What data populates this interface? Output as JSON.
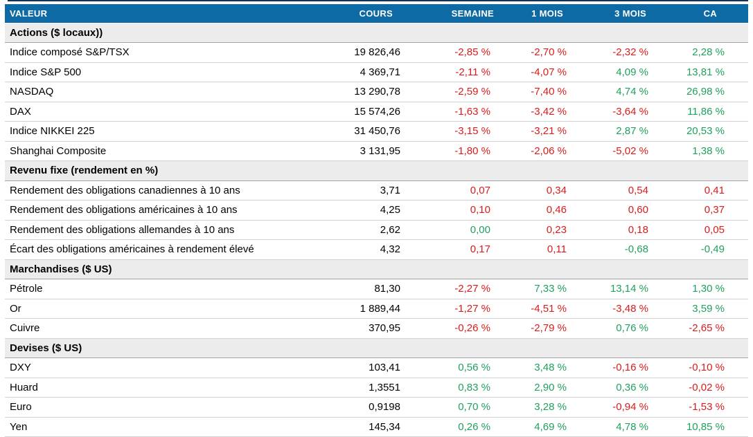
{
  "colors": {
    "header_bg": "#0e6aa5",
    "top_rule": "#16324f",
    "section_bg": "#ececec",
    "row_border": "#d2d2d2",
    "section_border": "#a3a3a3",
    "negative": "#dc1a1a",
    "positive": "#1fa05c"
  },
  "chart_data": {
    "type": "table",
    "columns": [
      "VALEUR",
      "COURS",
      "SEMAINE",
      "1 MOIS",
      "3 MOIS",
      "CA"
    ],
    "sections": [
      {
        "title": "Actions ($ locaux))",
        "rows": [
          {
            "label": "Indice composé S&P/TSX",
            "cours": "19 826,46",
            "changes": [
              {
                "text": "-2,85 %",
                "tone": "negative"
              },
              {
                "text": "-2,70 %",
                "tone": "negative"
              },
              {
                "text": "-2,32 %",
                "tone": "negative"
              },
              {
                "text": "2,28 %",
                "tone": "positive"
              }
            ]
          },
          {
            "label": "Indice S&P 500",
            "cours": "4 369,71",
            "changes": [
              {
                "text": "-2,11 %",
                "tone": "negative"
              },
              {
                "text": "-4,07 %",
                "tone": "negative"
              },
              {
                "text": "4,09 %",
                "tone": "positive"
              },
              {
                "text": "13,81 %",
                "tone": "positive"
              }
            ]
          },
          {
            "label": "NASDAQ",
            "cours": "13 290,78",
            "changes": [
              {
                "text": "-2,59 %",
                "tone": "negative"
              },
              {
                "text": "-7,40 %",
                "tone": "negative"
              },
              {
                "text": "4,74 %",
                "tone": "positive"
              },
              {
                "text": "26,98 %",
                "tone": "positive"
              }
            ]
          },
          {
            "label": "DAX",
            "cours": "15 574,26",
            "changes": [
              {
                "text": "-1,63 %",
                "tone": "negative"
              },
              {
                "text": "-3,42 %",
                "tone": "negative"
              },
              {
                "text": "-3,64 %",
                "tone": "negative"
              },
              {
                "text": "11,86 %",
                "tone": "positive"
              }
            ]
          },
          {
            "label": "Indice NIKKEI 225",
            "cours": "31 450,76",
            "changes": [
              {
                "text": "-3,15 %",
                "tone": "negative"
              },
              {
                "text": "-3,21 %",
                "tone": "negative"
              },
              {
                "text": "2,87 %",
                "tone": "positive"
              },
              {
                "text": "20,53 %",
                "tone": "positive"
              }
            ]
          },
          {
            "label": "Shanghai Composite",
            "cours": "3 131,95",
            "changes": [
              {
                "text": "-1,80 %",
                "tone": "negative"
              },
              {
                "text": "-2,06 %",
                "tone": "negative"
              },
              {
                "text": "-5,02 %",
                "tone": "negative"
              },
              {
                "text": "1,38 %",
                "tone": "positive"
              }
            ]
          }
        ]
      },
      {
        "title": "Revenu fixe (rendement en %)",
        "rows": [
          {
            "label": "Rendement des obligations canadiennes à 10 ans",
            "cours": "3,71",
            "changes": [
              {
                "text": "0,07",
                "tone": "negative"
              },
              {
                "text": "0,34",
                "tone": "negative"
              },
              {
                "text": "0,54",
                "tone": "negative"
              },
              {
                "text": "0,41",
                "tone": "negative"
              }
            ]
          },
          {
            "label": "Rendement des obligations américaines à 10 ans",
            "cours": "4,25",
            "changes": [
              {
                "text": "0,10",
                "tone": "negative"
              },
              {
                "text": "0,46",
                "tone": "negative"
              },
              {
                "text": "0,60",
                "tone": "negative"
              },
              {
                "text": "0,37",
                "tone": "negative"
              }
            ]
          },
          {
            "label": "Rendement des obligations allemandes à 10 ans",
            "cours": "2,62",
            "changes": [
              {
                "text": "0,00",
                "tone": "positive"
              },
              {
                "text": "0,23",
                "tone": "negative"
              },
              {
                "text": "0,18",
                "tone": "negative"
              },
              {
                "text": "0,05",
                "tone": "negative"
              }
            ]
          },
          {
            "label": "Écart des obligations américaines à rendement élevé",
            "cours": "4,32",
            "changes": [
              {
                "text": "0,17",
                "tone": "negative"
              },
              {
                "text": "0,11",
                "tone": "negative"
              },
              {
                "text": "-0,68",
                "tone": "positive"
              },
              {
                "text": "-0,49",
                "tone": "positive"
              }
            ]
          }
        ]
      },
      {
        "title": "Marchandises ($ US)",
        "rows": [
          {
            "label": "Pétrole",
            "cours": "81,30",
            "changes": [
              {
                "text": "-2,27 %",
                "tone": "negative"
              },
              {
                "text": "7,33 %",
                "tone": "positive"
              },
              {
                "text": "13,14 %",
                "tone": "positive"
              },
              {
                "text": "1,30 %",
                "tone": "positive"
              }
            ]
          },
          {
            "label": "Or",
            "cours": "1 889,44",
            "changes": [
              {
                "text": "-1,27 %",
                "tone": "negative"
              },
              {
                "text": "-4,51 %",
                "tone": "negative"
              },
              {
                "text": "-3,48 %",
                "tone": "negative"
              },
              {
                "text": "3,59 %",
                "tone": "positive"
              }
            ]
          },
          {
            "label": "Cuivre",
            "cours": "370,95",
            "changes": [
              {
                "text": "-0,26 %",
                "tone": "negative"
              },
              {
                "text": "-2,79 %",
                "tone": "negative"
              },
              {
                "text": "0,76 %",
                "tone": "positive"
              },
              {
                "text": "-2,65 %",
                "tone": "negative"
              }
            ]
          }
        ]
      },
      {
        "title": "Devises ($ US)",
        "rows": [
          {
            "label": "DXY",
            "cours": "103,41",
            "changes": [
              {
                "text": "0,56 %",
                "tone": "positive"
              },
              {
                "text": "3,48 %",
                "tone": "positive"
              },
              {
                "text": "-0,16 %",
                "tone": "negative"
              },
              {
                "text": "-0,10 %",
                "tone": "negative"
              }
            ]
          },
          {
            "label": "Huard",
            "cours": "1,3551",
            "changes": [
              {
                "text": "0,83 %",
                "tone": "positive"
              },
              {
                "text": "2,90 %",
                "tone": "positive"
              },
              {
                "text": "0,36 %",
                "tone": "positive"
              },
              {
                "text": "-0,02 %",
                "tone": "negative"
              }
            ]
          },
          {
            "label": "Euro",
            "cours": "0,9198",
            "changes": [
              {
                "text": "0,70 %",
                "tone": "positive"
              },
              {
                "text": "3,28 %",
                "tone": "positive"
              },
              {
                "text": "-0,94 %",
                "tone": "negative"
              },
              {
                "text": "-1,53 %",
                "tone": "negative"
              }
            ]
          },
          {
            "label": "Yen",
            "cours": "145,34",
            "changes": [
              {
                "text": "0,26 %",
                "tone": "positive"
              },
              {
                "text": "4,69 %",
                "tone": "positive"
              },
              {
                "text": "4,78 %",
                "tone": "positive"
              },
              {
                "text": "10,85 %",
                "tone": "positive"
              }
            ]
          }
        ]
      }
    ]
  }
}
